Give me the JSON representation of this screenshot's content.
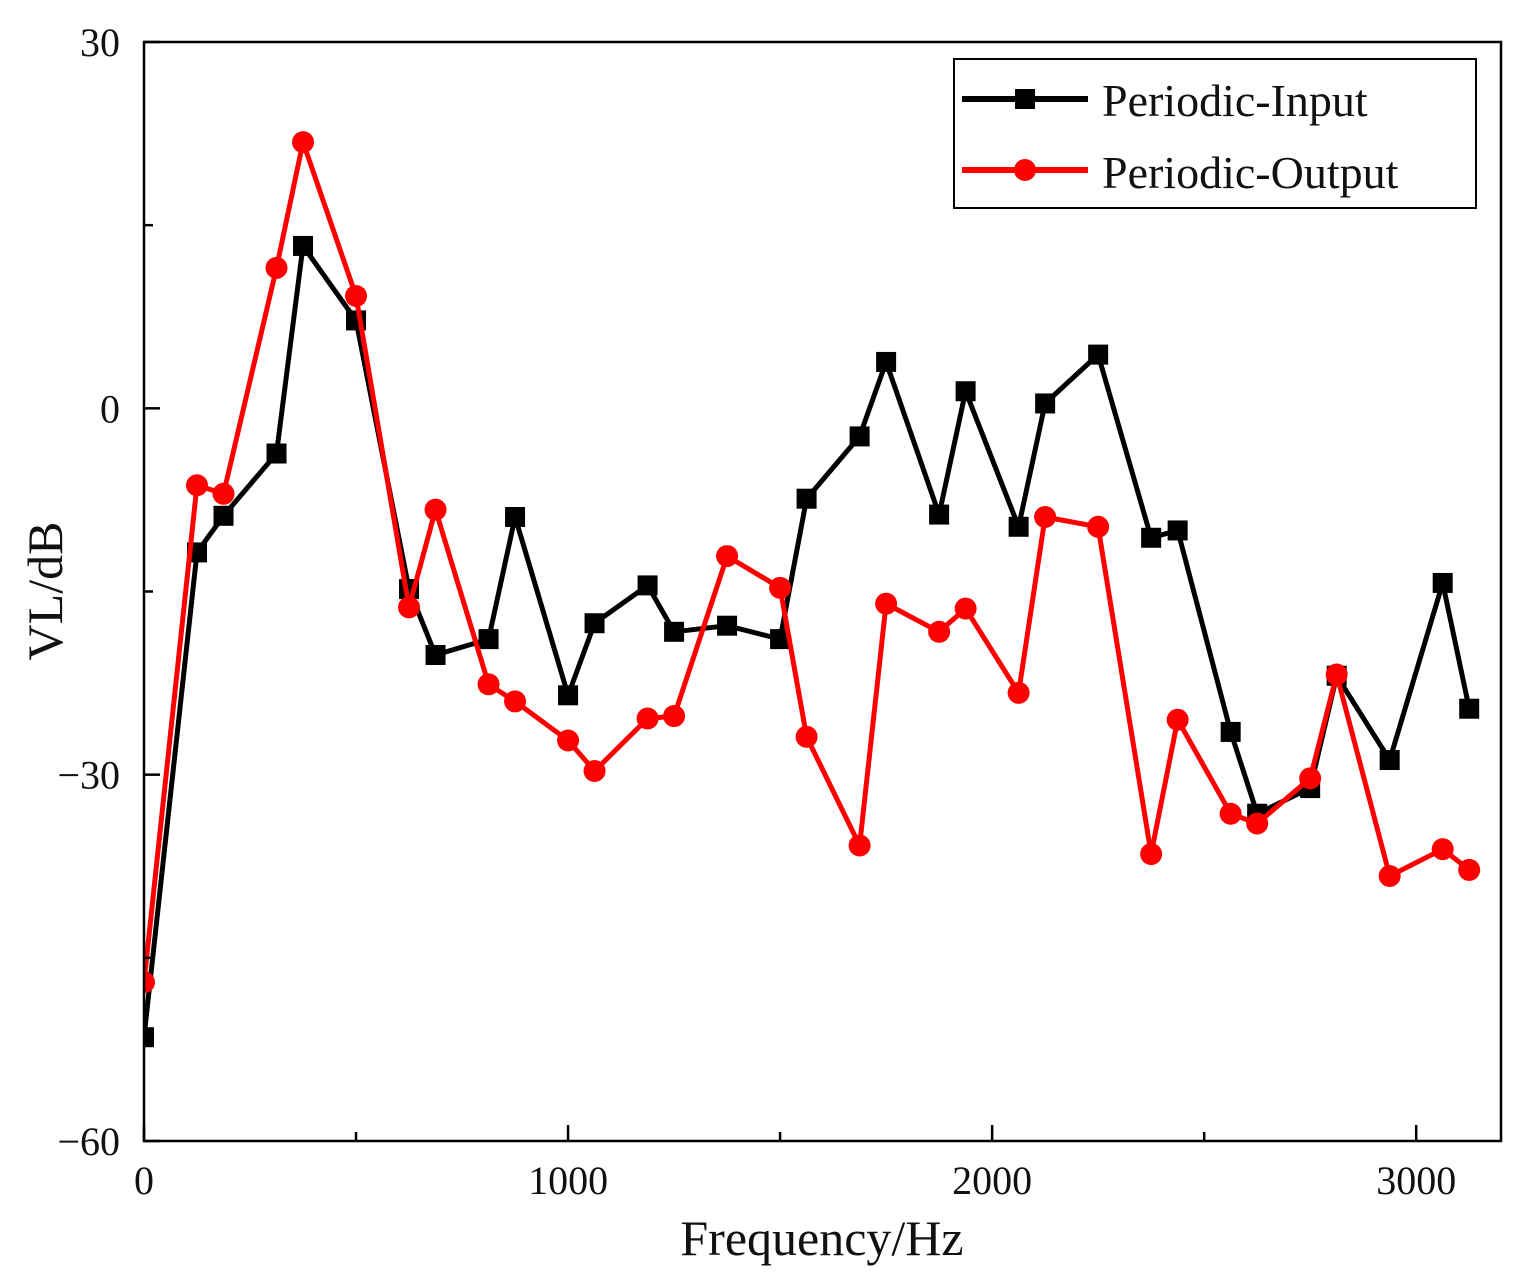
{
  "chart_data": {
    "type": "line",
    "title": "",
    "xlabel": "Frequency/Hz",
    "ylabel": "VL/dB",
    "xlim": [
      0,
      3200
    ],
    "ylim": [
      -60,
      30
    ],
    "x_ticks": [
      0,
      1000,
      2000,
      3000
    ],
    "x_tick_labels": [
      "0",
      "1000",
      "2000",
      "3000"
    ],
    "y_ticks": [
      30,
      0,
      -30,
      -60
    ],
    "y_tick_labels": [
      "30",
      "0",
      "−30",
      "−60"
    ],
    "grid": false,
    "legend_position": "top-right",
    "series": [
      {
        "name": "Periodic-Input",
        "color": "#000000",
        "marker": "square",
        "x": [
          0,
          125,
          187.5,
          312.5,
          375,
          500,
          625,
          687.5,
          812.5,
          875,
          1000,
          1062.5,
          1187.5,
          1250,
          1375,
          1500,
          1562.5,
          1687.5,
          1750,
          1875,
          1937.5,
          2062.5,
          2125,
          2250,
          2375,
          2437.5,
          2562.5,
          2625,
          2750,
          2812.5,
          2937.5,
          3062.5,
          3125
        ],
        "y": [
          -51.5,
          -11.8,
          -8.8,
          -3.7,
          13.3,
          7.2,
          -14.8,
          -20.2,
          -18.9,
          -8.9,
          -23.5,
          -17.6,
          -14.5,
          -18.3,
          -17.8,
          -18.9,
          -7.4,
          -2.3,
          3.8,
          -8.7,
          1.4,
          -9.7,
          0.4,
          4.4,
          -10.6,
          -10,
          -26.5,
          -33.2,
          -31.1,
          -21.9,
          -28.8,
          -14.3,
          -24.6
        ]
      },
      {
        "name": "Periodic-Output",
        "color": "#ff0000",
        "marker": "circle",
        "x": [
          0,
          125,
          187.5,
          312.5,
          375,
          500,
          625,
          687.5,
          812.5,
          875,
          1000,
          1062.5,
          1187.5,
          1250,
          1375,
          1500,
          1562.5,
          1687.5,
          1750,
          1875,
          1937.5,
          2062.5,
          2125,
          2250,
          2375,
          2437.5,
          2562.5,
          2625,
          2750,
          2812.5,
          2937.5,
          3062.5,
          3125
        ],
        "y": [
          -47,
          -6.3,
          -7,
          11.5,
          21.8,
          9.2,
          -16.3,
          -8.3,
          -22.6,
          -24,
          -27.2,
          -29.7,
          -25.4,
          -25.2,
          -12.1,
          -14.7,
          -26.9,
          -35.8,
          -16,
          -18.3,
          -16.4,
          -23.3,
          -8.9,
          -9.7,
          -36.5,
          -25.5,
          -33.2,
          -34,
          -30.3,
          -21.8,
          -38.3,
          -36.1,
          -37.8
        ]
      }
    ]
  }
}
